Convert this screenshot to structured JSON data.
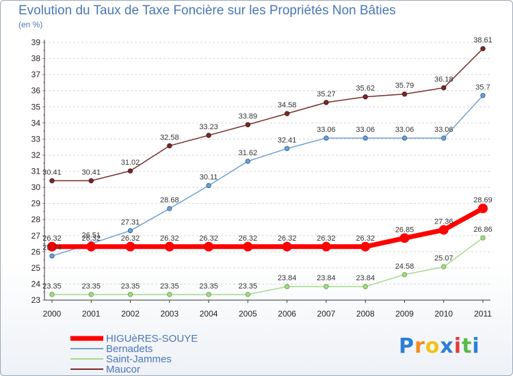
{
  "title": "Evolution du Taux de Taxe Foncière sur les Propriétés Non Bâties",
  "unit_label": "(en %)",
  "brand": {
    "letters": [
      "P",
      "r",
      "o",
      "x",
      "i",
      "t",
      "i"
    ],
    "colors": [
      "#2b7fd8",
      "#f28c1e",
      "#f2c318",
      "#2b7fd8",
      "#e23b3b",
      "#5bb847",
      "#2b7fd8"
    ]
  },
  "chart_data": {
    "type": "line",
    "title": "Evolution du Taux de Taxe Foncière sur les Propriétés Non Bâties",
    "ylabel": "(en %)",
    "xlabel": "",
    "x": [
      "2000",
      "2001",
      "2002",
      "2003",
      "2004",
      "2005",
      "2006",
      "2007",
      "2008",
      "2009",
      "2010",
      "2011"
    ],
    "ylim": [
      23,
      39
    ],
    "yticks": [
      23,
      24,
      25,
      26,
      27,
      28,
      29,
      30,
      31,
      32,
      33,
      34,
      35,
      36,
      37,
      38,
      39
    ],
    "grid": "horizontal",
    "legend": "bottom-left",
    "series": [
      {
        "name": "HIGUèRES-SOUYE",
        "color": "#ff0000",
        "width": 7,
        "values": [
          26.32,
          26.32,
          26.32,
          26.32,
          26.32,
          26.32,
          26.32,
          26.32,
          26.32,
          26.85,
          27.36,
          28.69
        ],
        "labels": [
          "26.32",
          "26.32",
          "26.32",
          "26.32",
          "26.32",
          "26.32",
          "26.32",
          "26.32",
          "26.32",
          "26.85",
          "27.36",
          "28.69"
        ]
      },
      {
        "name": "Bernadets",
        "color": "#6fa0d0",
        "width": 1.5,
        "values": [
          25.74,
          26.51,
          27.31,
          28.68,
          30.11,
          31.62,
          32.41,
          33.06,
          33.06,
          33.06,
          33.06,
          35.7
        ],
        "labels": [
          "25.74",
          "26.51",
          "27.31",
          "28.68",
          "30.11",
          "31.62",
          "32.41",
          "33.06",
          "33.06",
          "33.06",
          "33.06",
          "35.7"
        ]
      },
      {
        "name": "Saint-Jammes",
        "color": "#a6d98a",
        "width": 1.5,
        "values": [
          23.35,
          23.35,
          23.35,
          23.35,
          23.35,
          23.35,
          23.84,
          23.84,
          23.84,
          24.58,
          25.07,
          26.86
        ],
        "labels": [
          "23.35",
          "23.35",
          "23.35",
          "23.35",
          "23.35",
          "23.35",
          "23.84",
          "23.84",
          "23.84",
          "24.58",
          "25.07",
          "26.86"
        ]
      },
      {
        "name": "Maucor",
        "color": "#7a2a2a",
        "width": 1.5,
        "values": [
          30.41,
          30.41,
          31.02,
          32.58,
          33.23,
          33.89,
          34.58,
          35.27,
          35.62,
          35.79,
          36.18,
          38.61
        ],
        "labels": [
          "30.41",
          "30.41",
          "31.02",
          "32.58",
          "33.23",
          "33.89",
          "34.58",
          "35.27",
          "35.62",
          "35.79",
          "36.18",
          "38.61"
        ]
      }
    ]
  }
}
